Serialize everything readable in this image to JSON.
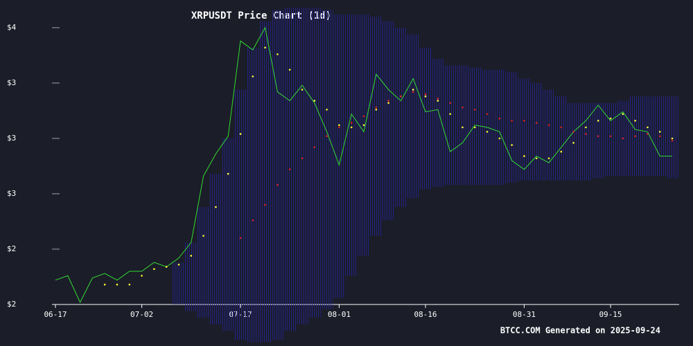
{
  "chart_data": {
    "type": "line",
    "title": "XRPUSDT Price Chart (1d)",
    "footer": "BTCC.COM Generated on 2025-09-24",
    "categories": [
      "06-17",
      null,
      null,
      null,
      null,
      null,
      null,
      "07-02",
      null,
      null,
      null,
      null,
      null,
      null,
      null,
      "07-17",
      null,
      null,
      null,
      null,
      null,
      null,
      null,
      "08-01",
      null,
      null,
      null,
      null,
      null,
      null,
      "08-16",
      null,
      null,
      null,
      null,
      null,
      null,
      null,
      "08-31",
      null,
      null,
      null,
      null,
      null,
      null,
      "09-15",
      null,
      null,
      null,
      null,
      null
    ],
    "ylim": [
      2.25,
      3.5625
    ],
    "yticks": [
      {
        "value": 2.25,
        "label": "$2"
      },
      {
        "value": 2.5,
        "label": "$2"
      },
      {
        "value": 2.75,
        "label": "$3"
      },
      {
        "value": 3.0,
        "label": "$3"
      },
      {
        "value": 3.25,
        "label": "$3"
      },
      {
        "value": 3.5,
        "label": "$4"
      }
    ],
    "band": {
      "color": "#1c1c8c",
      "upper": [
        null,
        null,
        null,
        null,
        null,
        null,
        null,
        null,
        null,
        null,
        2.44,
        2.53,
        2.69,
        2.84,
        3.0,
        3.22,
        3.41,
        3.53,
        3.58,
        3.59,
        3.59,
        3.59,
        3.58,
        3.56,
        3.56,
        3.56,
        3.55,
        3.53,
        3.5,
        3.47,
        3.41,
        3.36,
        3.33,
        3.33,
        3.32,
        3.31,
        3.31,
        3.3,
        3.27,
        3.25,
        3.22,
        3.19,
        3.16,
        3.16,
        3.16,
        3.16,
        3.17,
        3.19,
        3.19,
        3.19,
        3.19
      ],
      "lower": [
        null,
        null,
        null,
        null,
        null,
        null,
        null,
        null,
        null,
        null,
        2.25,
        2.22,
        2.19,
        2.16,
        2.13,
        2.09,
        2.08,
        2.08,
        2.09,
        2.13,
        2.16,
        2.19,
        2.23,
        2.28,
        2.38,
        2.47,
        2.56,
        2.63,
        2.69,
        2.73,
        2.77,
        2.78,
        2.79,
        2.79,
        2.79,
        2.79,
        2.79,
        2.8,
        2.81,
        2.81,
        2.81,
        2.81,
        2.81,
        2.81,
        2.82,
        2.83,
        2.83,
        2.83,
        2.83,
        2.83,
        2.82
      ]
    },
    "series": [
      {
        "color": "#33dd33",
        "style": "line",
        "values": [
          2.36,
          2.38,
          2.26,
          2.37,
          2.39,
          2.36,
          2.4,
          2.4,
          2.44,
          2.42,
          2.46,
          2.53,
          2.83,
          2.93,
          3.01,
          3.44,
          3.4,
          3.5,
          3.21,
          3.17,
          3.24,
          3.16,
          3.03,
          2.88,
          3.11,
          3.03,
          3.29,
          3.22,
          3.17,
          3.27,
          3.12,
          3.13,
          2.94,
          2.98,
          3.06,
          3.05,
          3.03,
          2.9,
          2.86,
          2.92,
          2.89,
          2.96,
          3.03,
          3.08,
          3.15,
          3.08,
          3.12,
          3.04,
          3.03,
          2.92,
          2.92
        ]
      },
      {
        "color": "#ffff33",
        "style": "dots",
        "values": [
          null,
          null,
          null,
          null,
          2.34,
          2.34,
          2.34,
          2.38,
          2.41,
          2.42,
          2.43,
          2.47,
          2.56,
          2.69,
          2.84,
          3.02,
          3.28,
          3.41,
          3.38,
          3.31,
          3.22,
          3.17,
          3.13,
          3.06,
          3.05,
          3.06,
          3.13,
          3.16,
          3.19,
          3.22,
          3.19,
          3.17,
          3.11,
          3.05,
          3.05,
          3.03,
          3.0,
          2.97,
          2.92,
          2.91,
          2.91,
          2.94,
          2.98,
          3.05,
          3.08,
          3.09,
          3.11,
          3.08,
          3.05,
          3.03,
          3.0
        ]
      },
      {
        "color": "#dd2222",
        "style": "dots",
        "values": [
          null,
          null,
          null,
          null,
          null,
          null,
          null,
          null,
          null,
          null,
          null,
          null,
          null,
          null,
          null,
          2.55,
          2.63,
          2.7,
          2.79,
          2.86,
          2.91,
          2.96,
          3.01,
          3.05,
          3.07,
          3.1,
          3.14,
          3.17,
          3.19,
          3.21,
          3.2,
          3.18,
          3.16,
          3.14,
          3.13,
          3.11,
          3.09,
          3.08,
          3.08,
          3.07,
          3.06,
          3.05,
          3.03,
          3.02,
          3.01,
          3.01,
          3.0,
          3.01,
          3.02,
          3.01,
          2.99
        ]
      }
    ]
  }
}
